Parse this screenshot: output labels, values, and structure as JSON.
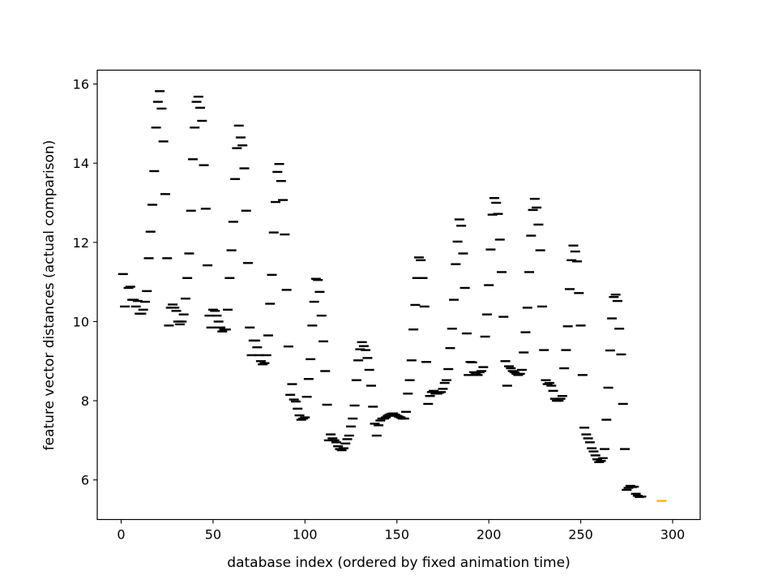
{
  "chart_data": {
    "type": "scatter",
    "title": "",
    "xlabel": "database index (ordered by fixed animation time)",
    "ylabel": "feature vector distances (actual comparison)",
    "xlim": [
      -13,
      315
    ],
    "ylim": [
      5.0,
      16.35
    ],
    "xticks": [
      0,
      50,
      100,
      150,
      200,
      250,
      300
    ],
    "yticks": [
      6,
      8,
      10,
      12,
      14,
      16
    ],
    "grid": false,
    "legend": "none",
    "marker": "horizontal-dash",
    "colors": {
      "default": "#000000",
      "highlight": "#ffb000"
    },
    "series": [
      {
        "color": "#000000",
        "points": [
          [
            1,
            11.2
          ],
          [
            2,
            10.38
          ],
          [
            4,
            10.85
          ],
          [
            5,
            10.88
          ],
          [
            6,
            10.55
          ],
          [
            7,
            10.55
          ],
          [
            8,
            10.38
          ],
          [
            9,
            10.52
          ],
          [
            10,
            10.2
          ],
          [
            11,
            10.2
          ],
          [
            12,
            10.3
          ],
          [
            13,
            10.5
          ],
          [
            14,
            10.77
          ],
          [
            15,
            11.6
          ],
          [
            16,
            12.27
          ],
          [
            17,
            12.95
          ],
          [
            18,
            13.8
          ],
          [
            19,
            14.9
          ],
          [
            20,
            15.55
          ],
          [
            21,
            15.82
          ],
          [
            22,
            15.38
          ],
          [
            23,
            14.55
          ],
          [
            24,
            13.22
          ],
          [
            25,
            11.6
          ],
          [
            26,
            9.9
          ],
          [
            27,
            10.35
          ],
          [
            28,
            10.43
          ],
          [
            29,
            10.35
          ],
          [
            30,
            10.27
          ],
          [
            31,
            10.0
          ],
          [
            32,
            9.93
          ],
          [
            33,
            10.0
          ],
          [
            34,
            10.18
          ],
          [
            35,
            10.58
          ],
          [
            36,
            11.1
          ],
          [
            37,
            11.72
          ],
          [
            38,
            12.8
          ],
          [
            39,
            14.1
          ],
          [
            40,
            14.9
          ],
          [
            41,
            15.55
          ],
          [
            42,
            15.68
          ],
          [
            43,
            15.4
          ],
          [
            44,
            15.07
          ],
          [
            45,
            13.95
          ],
          [
            46,
            12.85
          ],
          [
            47,
            11.42
          ],
          [
            48,
            10.15
          ],
          [
            49,
            9.85
          ],
          [
            50,
            10.3
          ],
          [
            51,
            10.27
          ],
          [
            52,
            10.15
          ],
          [
            53,
            10.0
          ],
          [
            54,
            9.85
          ],
          [
            55,
            9.75
          ],
          [
            56,
            9.8
          ],
          [
            57,
            9.8
          ],
          [
            58,
            10.3
          ],
          [
            59,
            11.1
          ],
          [
            60,
            11.8
          ],
          [
            61,
            12.52
          ],
          [
            62,
            13.6
          ],
          [
            63,
            14.38
          ],
          [
            64,
            14.95
          ],
          [
            65,
            14.65
          ],
          [
            66,
            14.45
          ],
          [
            67,
            13.87
          ],
          [
            68,
            12.8
          ],
          [
            69,
            11.48
          ],
          [
            70,
            9.85
          ],
          [
            71,
            9.15
          ],
          [
            72,
            9.52
          ],
          [
            73,
            9.52
          ],
          [
            74,
            9.35
          ],
          [
            75,
            9.15
          ],
          [
            76,
            9.0
          ],
          [
            77,
            8.92
          ],
          [
            78,
            8.95
          ],
          [
            79,
            9.15
          ],
          [
            80,
            9.65
          ],
          [
            81,
            10.45
          ],
          [
            82,
            11.18
          ],
          [
            83,
            12.25
          ],
          [
            84,
            13.02
          ],
          [
            85,
            13.78
          ],
          [
            86,
            13.98
          ],
          [
            87,
            13.55
          ],
          [
            88,
            13.07
          ],
          [
            89,
            12.2
          ],
          [
            90,
            10.8
          ],
          [
            91,
            9.37
          ],
          [
            92,
            8.15
          ],
          [
            93,
            8.42
          ],
          [
            94,
            8.03
          ],
          [
            95,
            7.98
          ],
          [
            96,
            7.8
          ],
          [
            97,
            7.63
          ],
          [
            98,
            7.52
          ],
          [
            99,
            7.55
          ],
          [
            100,
            7.58
          ],
          [
            101,
            8.1
          ],
          [
            102,
            8.55
          ],
          [
            103,
            9.05
          ],
          [
            104,
            9.9
          ],
          [
            105,
            10.5
          ],
          [
            106,
            11.08
          ],
          [
            107,
            11.05
          ],
          [
            108,
            10.75
          ],
          [
            109,
            10.15
          ],
          [
            110,
            9.5
          ],
          [
            111,
            8.75
          ],
          [
            112,
            7.9
          ],
          [
            113,
            7.0
          ],
          [
            114,
            7.15
          ],
          [
            115,
            7.05
          ],
          [
            116,
            7.0
          ],
          [
            117,
            6.95
          ],
          [
            118,
            6.85
          ],
          [
            119,
            6.78
          ],
          [
            120,
            6.75
          ],
          [
            121,
            6.8
          ],
          [
            122,
            6.92
          ],
          [
            123,
            7.03
          ],
          [
            124,
            7.12
          ],
          [
            125,
            7.35
          ],
          [
            126,
            7.55
          ],
          [
            127,
            7.88
          ],
          [
            128,
            8.52
          ],
          [
            129,
            9.02
          ],
          [
            130,
            9.3
          ],
          [
            131,
            9.48
          ],
          [
            132,
            9.38
          ],
          [
            133,
            9.28
          ],
          [
            134,
            9.08
          ],
          [
            135,
            8.78
          ],
          [
            136,
            8.38
          ],
          [
            137,
            7.85
          ],
          [
            138,
            7.42
          ],
          [
            139,
            7.12
          ],
          [
            140,
            7.38
          ],
          [
            141,
            7.5
          ],
          [
            142,
            7.55
          ],
          [
            143,
            7.55
          ],
          [
            144,
            7.58
          ],
          [
            145,
            7.62
          ],
          [
            146,
            7.65
          ],
          [
            147,
            7.67
          ],
          [
            148,
            7.68
          ],
          [
            149,
            7.65
          ],
          [
            150,
            7.62
          ],
          [
            151,
            7.6
          ],
          [
            152,
            7.58
          ],
          [
            153,
            7.55
          ],
          [
            154,
            7.55
          ],
          [
            155,
            7.72
          ],
          [
            156,
            8.18
          ],
          [
            157,
            8.52
          ],
          [
            158,
            9.02
          ],
          [
            159,
            9.8
          ],
          [
            160,
            10.42
          ],
          [
            161,
            11.1
          ],
          [
            162,
            11.62
          ],
          [
            163,
            11.55
          ],
          [
            164,
            11.1
          ],
          [
            165,
            10.38
          ],
          [
            166,
            8.98
          ],
          [
            167,
            7.92
          ],
          [
            168,
            8.12
          ],
          [
            169,
            8.22
          ],
          [
            170,
            8.25
          ],
          [
            171,
            8.18
          ],
          [
            172,
            8.18
          ],
          [
            173,
            8.2
          ],
          [
            174,
            8.22
          ],
          [
            175,
            8.3
          ],
          [
            176,
            8.45
          ],
          [
            177,
            8.52
          ],
          [
            178,
            8.8
          ],
          [
            179,
            9.33
          ],
          [
            180,
            9.82
          ],
          [
            181,
            10.55
          ],
          [
            182,
            11.45
          ],
          [
            183,
            12.02
          ],
          [
            184,
            12.58
          ],
          [
            185,
            12.42
          ],
          [
            186,
            11.72
          ],
          [
            187,
            10.85
          ],
          [
            188,
            9.7
          ],
          [
            189,
            8.65
          ],
          [
            190,
            8.98
          ],
          [
            191,
            8.97
          ],
          [
            192,
            8.72
          ],
          [
            193,
            8.68
          ],
          [
            194,
            8.65
          ],
          [
            195,
            8.72
          ],
          [
            196,
            8.75
          ],
          [
            197,
            8.85
          ],
          [
            198,
            9.62
          ],
          [
            199,
            10.18
          ],
          [
            200,
            10.92
          ],
          [
            201,
            11.82
          ],
          [
            202,
            12.7
          ],
          [
            203,
            13.12
          ],
          [
            204,
            13.0
          ],
          [
            205,
            12.72
          ],
          [
            206,
            12.07
          ],
          [
            207,
            11.25
          ],
          [
            208,
            10.12
          ],
          [
            209,
            9.0
          ],
          [
            210,
            8.38
          ],
          [
            211,
            8.87
          ],
          [
            212,
            8.82
          ],
          [
            213,
            8.75
          ],
          [
            214,
            8.72
          ],
          [
            215,
            8.68
          ],
          [
            216,
            8.65
          ],
          [
            217,
            8.68
          ],
          [
            218,
            8.78
          ],
          [
            219,
            9.22
          ],
          [
            220,
            9.73
          ],
          [
            221,
            10.35
          ],
          [
            222,
            11.25
          ],
          [
            223,
            12.17
          ],
          [
            224,
            12.82
          ],
          [
            225,
            13.1
          ],
          [
            226,
            12.88
          ],
          [
            227,
            12.45
          ],
          [
            228,
            11.8
          ],
          [
            229,
            10.38
          ],
          [
            230,
            9.28
          ],
          [
            231,
            8.52
          ],
          [
            232,
            8.42
          ],
          [
            233,
            8.45
          ],
          [
            234,
            8.38
          ],
          [
            235,
            8.25
          ],
          [
            236,
            8.05
          ],
          [
            237,
            8.0
          ],
          [
            238,
            8.0
          ],
          [
            239,
            8.05
          ],
          [
            240,
            8.12
          ],
          [
            241,
            8.82
          ],
          [
            242,
            9.28
          ],
          [
            243,
            9.88
          ],
          [
            244,
            10.82
          ],
          [
            245,
            11.55
          ],
          [
            246,
            11.92
          ],
          [
            247,
            11.77
          ],
          [
            248,
            11.52
          ],
          [
            249,
            10.72
          ],
          [
            250,
            9.9
          ],
          [
            251,
            8.65
          ],
          [
            252,
            7.32
          ],
          [
            253,
            7.15
          ],
          [
            254,
            7.05
          ],
          [
            255,
            6.95
          ],
          [
            256,
            6.8
          ],
          [
            257,
            6.72
          ],
          [
            258,
            6.62
          ],
          [
            259,
            6.52
          ],
          [
            260,
            6.45
          ],
          [
            261,
            6.48
          ],
          [
            262,
            6.55
          ],
          [
            263,
            6.78
          ],
          [
            264,
            7.52
          ],
          [
            265,
            8.33
          ],
          [
            266,
            9.27
          ],
          [
            267,
            10.08
          ],
          [
            268,
            10.62
          ],
          [
            269,
            10.68
          ],
          [
            270,
            10.52
          ],
          [
            271,
            9.82
          ],
          [
            272,
            9.17
          ],
          [
            273,
            7.92
          ],
          [
            274,
            6.78
          ],
          [
            275,
            5.75
          ],
          [
            276,
            5.8
          ],
          [
            277,
            5.85
          ],
          [
            278,
            5.82
          ],
          [
            279,
            5.83
          ],
          [
            280,
            5.65
          ],
          [
            281,
            5.6
          ],
          [
            282,
            5.57
          ],
          [
            283,
            5.58
          ]
        ]
      },
      {
        "color": "#ffb000",
        "points": [
          [
            294,
            5.47
          ]
        ]
      }
    ]
  }
}
